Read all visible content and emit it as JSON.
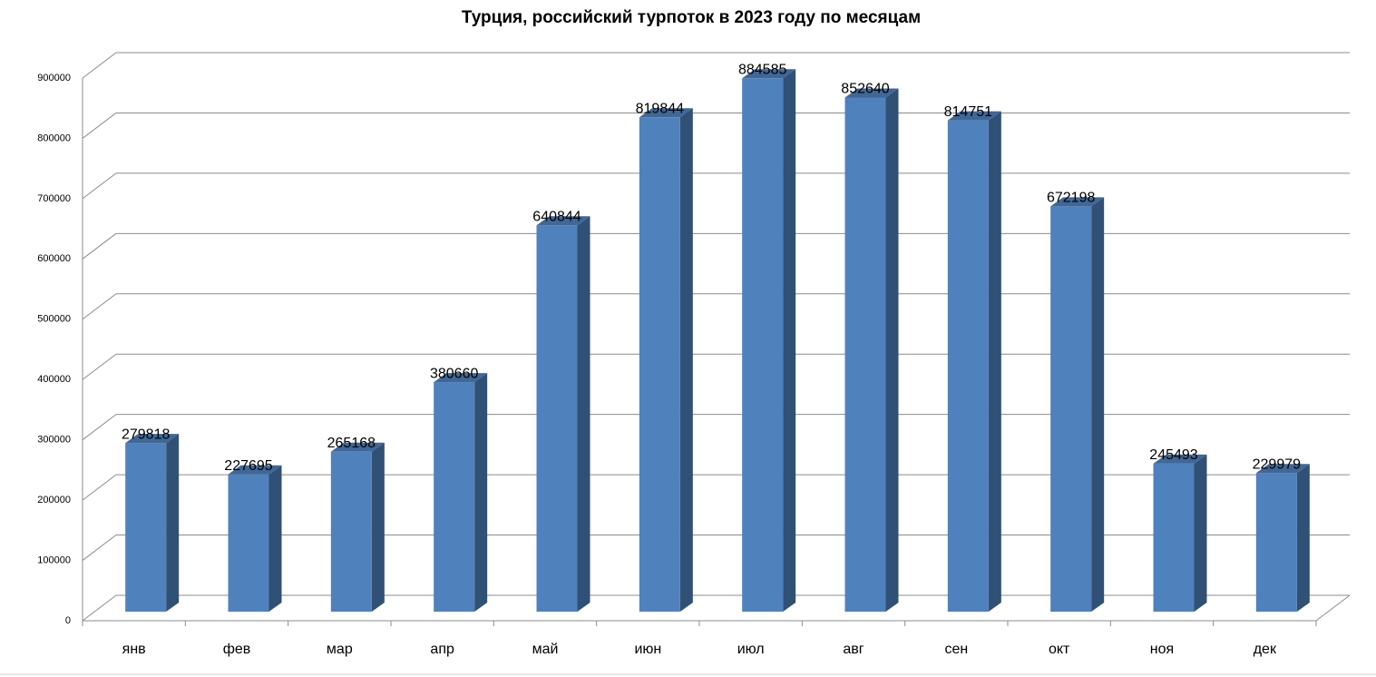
{
  "chart_data": {
    "type": "bar3d",
    "title": "Турция, российский турпоток в 2023 году по месяцам",
    "categories": [
      "янв",
      "фев",
      "мар",
      "апр",
      "май",
      "июн",
      "июл",
      "авг",
      "сен",
      "окт",
      "ноя",
      "дек"
    ],
    "values": [
      279818,
      227695,
      265168,
      380660,
      640844,
      819844,
      884585,
      852640,
      814751,
      672198,
      245493,
      229979
    ],
    "color": "#4f81bd",
    "ylim": [
      0,
      900000
    ],
    "yticks": [
      0,
      100000,
      200000,
      300000,
      400000,
      500000,
      600000,
      700000,
      800000,
      900000
    ],
    "grid": true
  }
}
